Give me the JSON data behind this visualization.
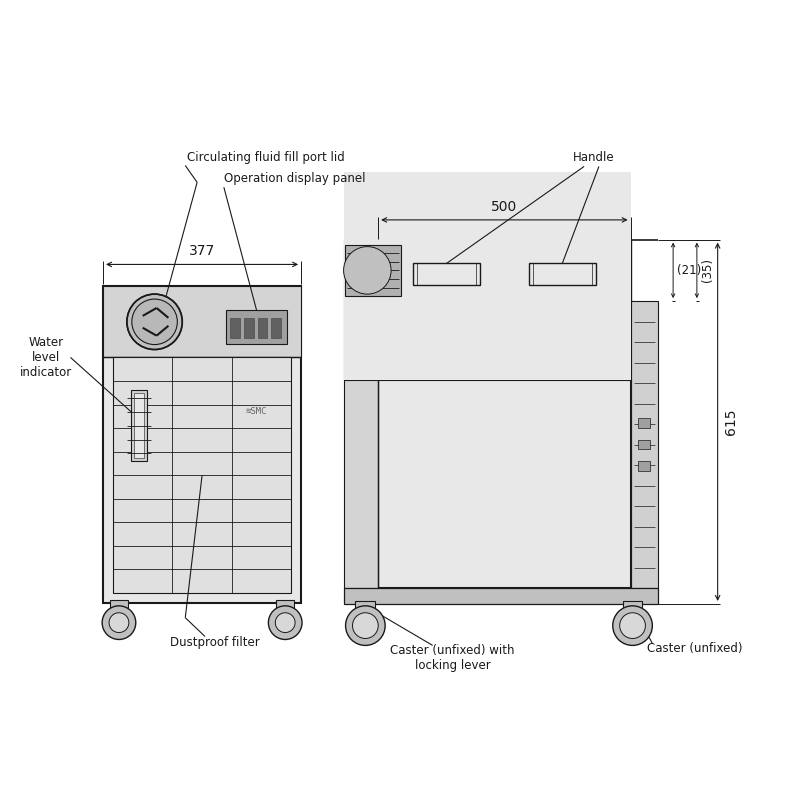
{
  "bg_color": "#ffffff",
  "line_color": "#1a1a1a",
  "fill_light": "#e8e8e8",
  "fill_mid": "#d4d4d4",
  "fill_dark": "#c0c0c0",
  "fill_darker": "#a8a8a8",
  "annotations": {
    "circ_fluid": "Circulating fluid fill port lid",
    "op_display": "Operation display panel",
    "water_level": "Water\nlevel\nindicator",
    "dustproof": "Dustproof filter",
    "handle": "Handle",
    "caster_locking": "Caster (unfixed) with\nlocking lever",
    "caster_unfixed": "Caster (unfixed)",
    "dim_377": "377",
    "dim_500": "500",
    "dim_21": "(21)",
    "dim_35": "(35)",
    "dim_615": "615"
  }
}
